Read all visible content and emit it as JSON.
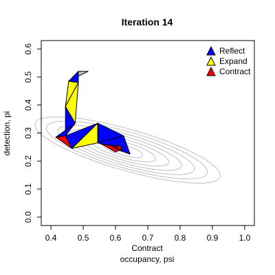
{
  "chart_data": {
    "type": "line",
    "title": "Iteration 14",
    "xlabel": "occupancy, psi",
    "ylabel": "detection, pi",
    "status_label": "Contract",
    "xlim": [
      0.37,
      1.03
    ],
    "ylim": [
      -0.03,
      0.63
    ],
    "x_ticks": [
      "0.4",
      "0.5",
      "0.6",
      "0.7",
      "0.8",
      "0.9",
      "1.0"
    ],
    "y_ticks": [
      "0.0",
      "0.1",
      "0.2",
      "0.3",
      "0.4",
      "0.5",
      "0.6"
    ],
    "x_tick_values": [
      0.4,
      0.5,
      0.6,
      0.7,
      0.8,
      0.9,
      1.0
    ],
    "y_tick_values": [
      0.0,
      0.1,
      0.2,
      0.3,
      0.4,
      0.5,
      0.6
    ],
    "legend": {
      "position": "top-right",
      "entries": [
        {
          "label": "Reflect",
          "color": "#0000ff"
        },
        {
          "label": "Expand",
          "color": "#ffff00"
        },
        {
          "label": "Contract",
          "color": "#ff0000"
        }
      ]
    },
    "contour_center": [
      0.62,
      0.24
    ],
    "contour_levels": 7,
    "contour_color": "#bebebe",
    "triangles": [
      {
        "step": "initial",
        "color": "#bebebe",
        "points": [
          [
            0.455,
            0.485
          ],
          [
            0.485,
            0.52
          ],
          [
            0.515,
            0.52
          ]
        ]
      },
      {
        "step": "reflect",
        "color": "#0000ff",
        "points": [
          [
            0.455,
            0.485
          ],
          [
            0.485,
            0.52
          ],
          [
            0.485,
            0.48
          ]
        ]
      },
      {
        "step": "expand",
        "color": "#ffff00",
        "points": [
          [
            0.455,
            0.485
          ],
          [
            0.485,
            0.48
          ],
          [
            0.445,
            0.395
          ]
        ]
      },
      {
        "step": "expand",
        "color": "#ffff00",
        "points": [
          [
            0.445,
            0.395
          ],
          [
            0.485,
            0.48
          ],
          [
            0.475,
            0.335
          ]
        ]
      },
      {
        "step": "reflect",
        "color": "#0000ff",
        "points": [
          [
            0.445,
            0.395
          ],
          [
            0.475,
            0.335
          ],
          [
            0.445,
            0.29
          ]
        ]
      },
      {
        "step": "reflect",
        "color": "#0000ff",
        "points": [
          [
            0.445,
            0.29
          ],
          [
            0.475,
            0.335
          ],
          [
            0.415,
            0.285
          ]
        ]
      },
      {
        "step": "contract",
        "color": "#ff0000",
        "points": [
          [
            0.415,
            0.285
          ],
          [
            0.445,
            0.29
          ],
          [
            0.465,
            0.245
          ]
        ]
      },
      {
        "step": "reflect",
        "color": "#0000ff",
        "points": [
          [
            0.445,
            0.29
          ],
          [
            0.465,
            0.245
          ],
          [
            0.545,
            0.335
          ]
        ]
      },
      {
        "step": "expand",
        "color": "#ffff00",
        "points": [
          [
            0.465,
            0.245
          ],
          [
            0.545,
            0.335
          ],
          [
            0.545,
            0.265
          ]
        ]
      },
      {
        "step": "reflect",
        "color": "#0000ff",
        "points": [
          [
            0.545,
            0.335
          ],
          [
            0.545,
            0.265
          ],
          [
            0.625,
            0.29
          ]
        ]
      },
      {
        "step": "reflect",
        "color": "#0000ff",
        "points": [
          [
            0.545,
            0.265
          ],
          [
            0.625,
            0.29
          ],
          [
            0.645,
            0.225
          ]
        ]
      },
      {
        "step": "contract",
        "color": "#ff0000",
        "points": [
          [
            0.555,
            0.262
          ],
          [
            0.625,
            0.245
          ],
          [
            0.6,
            0.232
          ]
        ]
      },
      {
        "step": "contract",
        "color": "#ff0000",
        "points": [
          [
            0.585,
            0.26
          ],
          [
            0.62,
            0.238
          ],
          [
            0.6,
            0.244
          ]
        ]
      },
      {
        "step": "contract",
        "color": "#ff0000",
        "points": [
          [
            0.6,
            0.258
          ],
          [
            0.62,
            0.25
          ],
          [
            0.612,
            0.238
          ]
        ]
      }
    ]
  }
}
